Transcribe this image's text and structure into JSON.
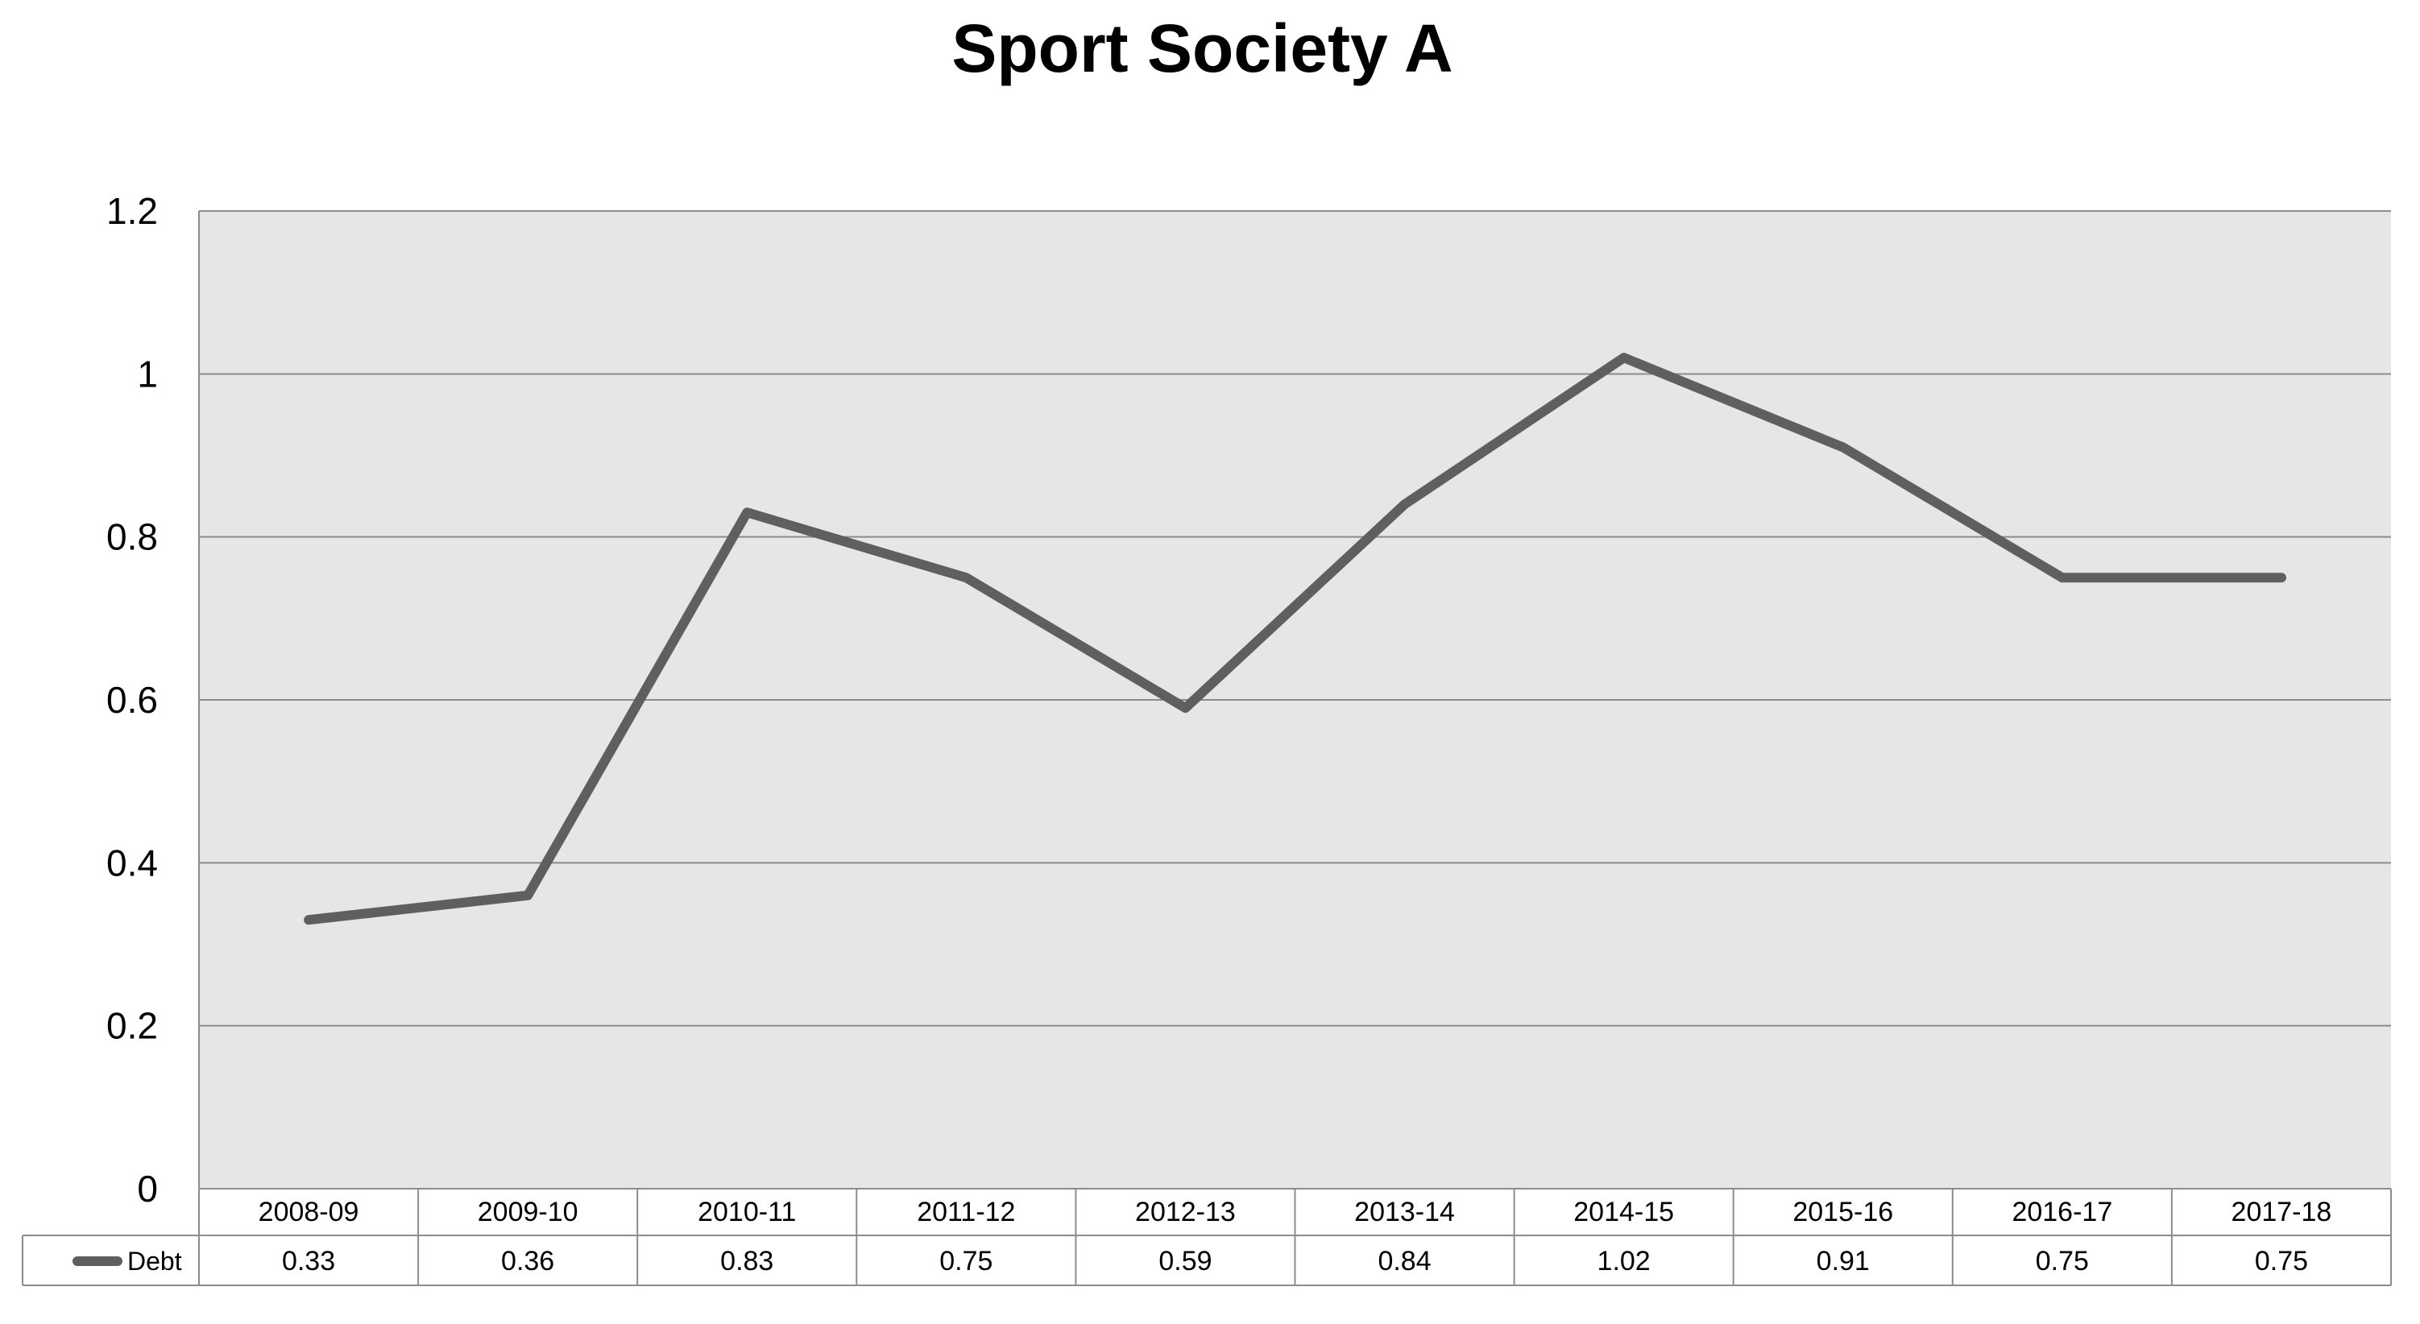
{
  "chart_data": {
    "type": "line",
    "title": "Sport Society A",
    "categories": [
      "2008-09",
      "2009-10",
      "2010-11",
      "2011-12",
      "2012-13",
      "2013-14",
      "2014-15",
      "2015-16",
      "2016-17",
      "2017-18"
    ],
    "series": [
      {
        "name": "Debt",
        "values": [
          0.33,
          0.36,
          0.83,
          0.75,
          0.59,
          0.84,
          1.02,
          0.91,
          0.75,
          0.75
        ],
        "color": "#5f5f5f"
      }
    ],
    "value_labels": [
      "0.33",
      "0.36",
      "0.83",
      "0.75",
      "0.59",
      "0.84",
      "1.02",
      "0.91",
      "0.75",
      "0.75"
    ],
    "yticks": [
      "0",
      "0.2",
      "0.4",
      "0.6",
      "0.8",
      "1",
      "1.2"
    ],
    "ylim": [
      0,
      1.2
    ],
    "grid": true,
    "legend": "data-table",
    "plot_background": "#e6e6e6",
    "gridline_color": "#8c8c8c"
  }
}
